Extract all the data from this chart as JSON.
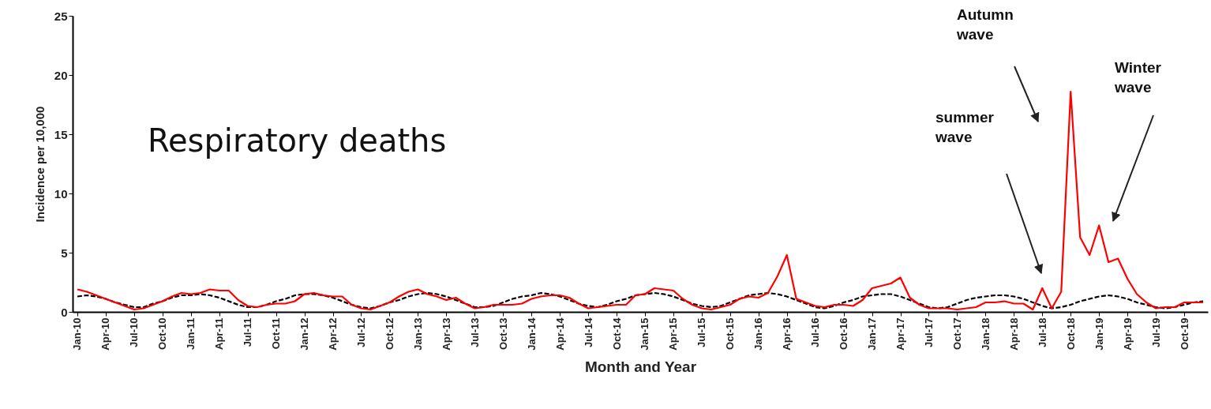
{
  "chart_data": {
    "type": "line",
    "xlabel": "Month and Year",
    "ylabel": "Incidence per 10,000",
    "categories": [
      "Jan-10",
      null,
      null,
      "Apr-10",
      null,
      null,
      "Jul-10",
      null,
      null,
      "Oct-10",
      null,
      null,
      "Jan-11",
      null,
      null,
      "Apr-11",
      null,
      null,
      "Jul-11",
      null,
      null,
      "Oct-11",
      null,
      null,
      "Jan-12",
      null,
      null,
      "Apr-12",
      null,
      null,
      "Jul-12",
      null,
      null,
      "Oct-12",
      null,
      null,
      "Jan-13",
      null,
      null,
      "Apr-13",
      null,
      null,
      "Jul-13",
      null,
      null,
      "Oct-13",
      null,
      null,
      "Jan-14",
      null,
      null,
      "Apr-14",
      null,
      null,
      "Jul-14",
      null,
      null,
      "Oct-14",
      null,
      null,
      "Jan-15",
      null,
      null,
      "Apr-15",
      null,
      null,
      "Jul-15",
      null,
      null,
      "Oct-15",
      null,
      null,
      "Jan-16",
      null,
      null,
      "Apr-16",
      null,
      null,
      "Jul-16",
      null,
      null,
      "Oct-16",
      null,
      null,
      "Jan-17",
      null,
      null,
      "Apr-17",
      null,
      null,
      "Jul-17",
      null,
      null,
      "Oct-17",
      null,
      null,
      "Jan-18",
      null,
      null,
      "Apr-18",
      null,
      null,
      "Jul-18",
      null,
      null,
      "Oct-18",
      null,
      null,
      "Jan-19",
      null,
      null,
      "Apr-19",
      null,
      null,
      "Jul-19",
      null,
      null,
      "Oct-19",
      null,
      null
    ],
    "series": [
      {
        "color": "#000000",
        "line_style": "dashed",
        "values": [
          1.3,
          1.4,
          1.3,
          1.1,
          0.8,
          0.6,
          0.4,
          0.4,
          0.7,
          0.9,
          1.2,
          1.4,
          1.4,
          1.5,
          1.4,
          1.2,
          0.9,
          0.6,
          0.4,
          0.4,
          0.6,
          0.9,
          1.1,
          1.4,
          1.5,
          1.5,
          1.4,
          1.2,
          0.9,
          0.6,
          0.4,
          0.3,
          0.5,
          0.8,
          1.0,
          1.3,
          1.5,
          1.6,
          1.5,
          1.3,
          1.0,
          0.7,
          0.4,
          0.4,
          0.5,
          0.8,
          1.1,
          1.3,
          1.4,
          1.6,
          1.5,
          1.3,
          1.0,
          0.7,
          0.5,
          0.4,
          0.6,
          0.9,
          1.1,
          1.4,
          1.5,
          1.6,
          1.5,
          1.3,
          1.0,
          0.7,
          0.5,
          0.4,
          0.5,
          0.8,
          1.1,
          1.4,
          1.5,
          1.6,
          1.5,
          1.3,
          1.0,
          0.7,
          0.4,
          0.3,
          0.5,
          0.8,
          1.0,
          1.3,
          1.4,
          1.5,
          1.5,
          1.3,
          1.0,
          0.7,
          0.4,
          0.3,
          0.4,
          0.7,
          1.0,
          1.2,
          1.3,
          1.4,
          1.4,
          1.3,
          1.1,
          0.8,
          0.5,
          0.3,
          0.4,
          0.6,
          0.9,
          1.1,
          1.3,
          1.4,
          1.3,
          1.1,
          0.8,
          0.6,
          0.4,
          0.3,
          0.4,
          0.6,
          0.8,
          0.9
        ]
      },
      {
        "color": "#ff0000",
        "line_style": "solid",
        "values": [
          1.9,
          1.7,
          1.4,
          1.1,
          0.8,
          0.5,
          0.2,
          0.3,
          0.6,
          0.9,
          1.3,
          1.6,
          1.5,
          1.6,
          1.9,
          1.8,
          1.8,
          1.0,
          0.5,
          0.4,
          0.6,
          0.7,
          0.7,
          0.9,
          1.5,
          1.6,
          1.4,
          1.3,
          1.3,
          0.6,
          0.3,
          0.2,
          0.5,
          0.8,
          1.3,
          1.7,
          1.9,
          1.5,
          1.3,
          1.0,
          1.2,
          0.7,
          0.3,
          0.4,
          0.6,
          0.6,
          0.6,
          0.7,
          1.1,
          1.3,
          1.4,
          1.4,
          1.2,
          0.7,
          0.3,
          0.4,
          0.5,
          0.6,
          0.6,
          1.4,
          1.5,
          2.0,
          1.9,
          1.8,
          1.1,
          0.6,
          0.3,
          0.2,
          0.4,
          0.6,
          1.1,
          1.3,
          1.2,
          1.6,
          3.0,
          4.8,
          1.1,
          0.8,
          0.5,
          0.4,
          0.6,
          0.6,
          0.5,
          1.0,
          2.0,
          2.2,
          2.4,
          2.9,
          1.2,
          0.6,
          0.3,
          0.3,
          0.3,
          0.2,
          0.3,
          0.4,
          0.8,
          0.8,
          0.9,
          0.7,
          0.7,
          0.2,
          2.0,
          0.3,
          1.7,
          18.6,
          6.3,
          4.8,
          7.3,
          4.2,
          4.5,
          2.8,
          1.5,
          0.8,
          0.3,
          0.4,
          0.4,
          0.8,
          0.8,
          0.8
        ]
      }
    ],
    "ylim": [
      0,
      25
    ],
    "yticks": [
      0,
      5,
      10,
      15,
      20,
      25
    ],
    "grid": false,
    "marker": "none",
    "annotations": [
      "Respiratory deaths",
      "Autumn wave",
      "summer wave",
      "Winter wave"
    ]
  }
}
